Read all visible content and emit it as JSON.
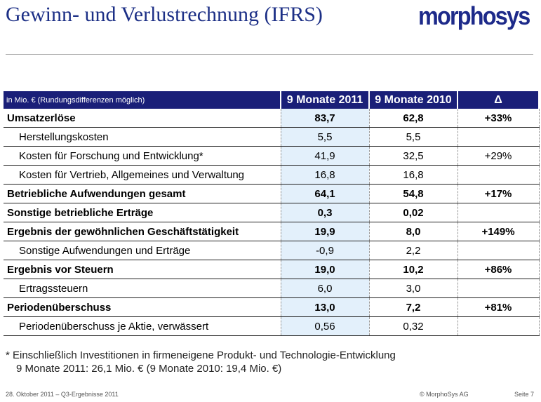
{
  "title": "Gewinn- und Verlustrechnung (IFRS)",
  "logo": "morphosys",
  "table": {
    "headers": [
      "in Mio. € (Rundungsdifferenzen möglich)",
      "9 Monate 2011",
      "9 Monate 2010",
      "Δ"
    ],
    "rows": [
      {
        "label": "Umsatzerlöse",
        "v2011": "83,7",
        "v2010": "62,8",
        "delta": "+33%"
      },
      {
        "label": "Herstellungskosten",
        "v2011": "5,5",
        "v2010": "5,5",
        "delta": ""
      },
      {
        "label": "Kosten für Forschung und Entwicklung*",
        "v2011": "41,9",
        "v2010": "32,5",
        "delta": "+29%"
      },
      {
        "label": "Kosten für Vertrieb, Allgemeines und Verwaltung",
        "v2011": "16,8",
        "v2010": "16,8",
        "delta": ""
      },
      {
        "label": "Betriebliche Aufwendungen gesamt",
        "v2011": "64,1",
        "v2010": "54,8",
        "delta": "+17%"
      },
      {
        "label": "Sonstige betriebliche Erträge",
        "v2011": "0,3",
        "v2010": "0,02",
        "delta": ""
      },
      {
        "label": "Ergebnis der gewöhnlichen Geschäftstätigkeit",
        "v2011": "19,9",
        "v2010": "8,0",
        "delta": "+149%"
      },
      {
        "label": "Sonstige Aufwendungen und Erträge",
        "v2011": "-0,9",
        "v2010": "2,2",
        "delta": ""
      },
      {
        "label": "Ergebnis vor Steuern",
        "v2011": "19,0",
        "v2010": "10,2",
        "delta": "+86%"
      },
      {
        "label": "Ertragssteuern",
        "v2011": "6,0",
        "v2010": "3,0",
        "delta": ""
      },
      {
        "label": "Periodenüberschuss",
        "v2011": "13,0",
        "v2010": "7,2",
        "delta": "+81%"
      },
      {
        "label": "Periodenüberschuss je Aktie, verwässert",
        "v2011": "0,56",
        "v2010": "0,32",
        "delta": ""
      }
    ]
  },
  "note": {
    "line1": "*  Einschließlich Investitionen in firmeneigene Produkt- und Technologie-Entwicklung",
    "line2": "9 Monate 2011: 26,1 Mio. € (9 Monate 2010: 19,4 Mio. €)"
  },
  "footer": {
    "date": "28. Oktober 2011 – Q3-Ergebnisse 2011",
    "copyright": "© MorphoSys AG",
    "page": "Seite 7"
  }
}
